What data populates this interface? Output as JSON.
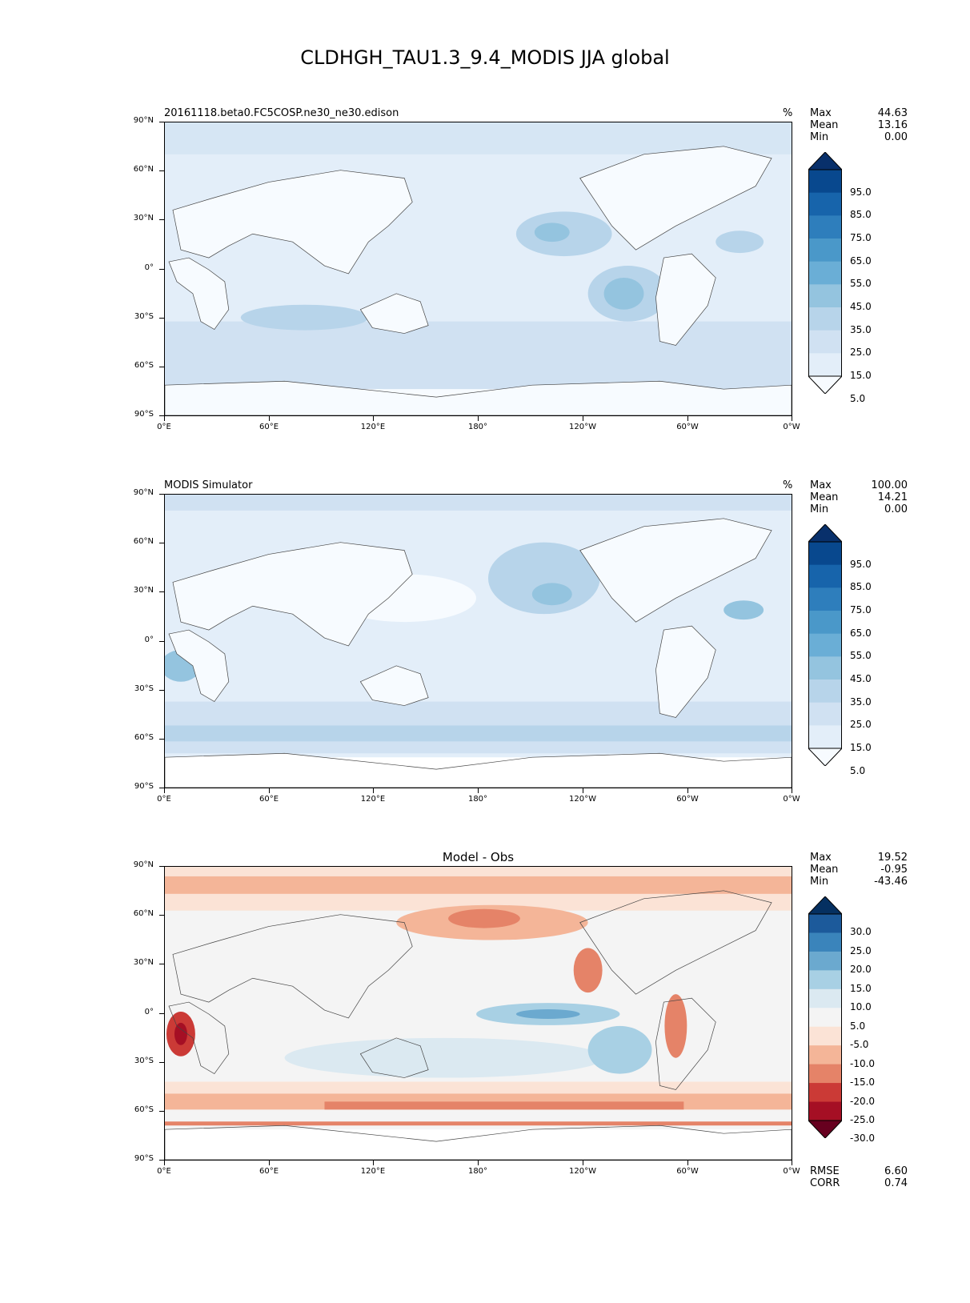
{
  "title": "CLDHGH_TAU1.3_9.4_MODIS JJA global",
  "axes": {
    "lat_labels": [
      "90°N",
      "60°N",
      "30°N",
      "0°",
      "30°S",
      "60°S",
      "90°S"
    ],
    "lon_labels": [
      "0°E",
      "60°E",
      "120°E",
      "180°",
      "120°W",
      "60°W",
      "0°W"
    ]
  },
  "panels": [
    {
      "title": "20161118.beta0.FC5COSP.ne30_ne30.edison",
      "units": "%",
      "stats": {
        "max_label": "Max",
        "max": "44.63",
        "mean_label": "Mean",
        "mean": "13.16",
        "min_label": "Min",
        "min": "0.00"
      },
      "colorbar_labels": [
        "95.0",
        "85.0",
        "75.0",
        "65.0",
        "55.0",
        "45.0",
        "35.0",
        "25.0",
        "15.0",
        "5.0"
      ]
    },
    {
      "title": "MODIS Simulator",
      "units": "%",
      "stats": {
        "max_label": "Max",
        "max": "100.00",
        "mean_label": "Mean",
        "mean": "14.21",
        "min_label": "Min",
        "min": "0.00"
      },
      "colorbar_labels": [
        "95.0",
        "85.0",
        "75.0",
        "65.0",
        "55.0",
        "45.0",
        "35.0",
        "25.0",
        "15.0",
        "5.0"
      ]
    },
    {
      "title": "Model - Obs",
      "units": "",
      "stats": {
        "max_label": "Max",
        "max": "19.52",
        "mean_label": "Mean",
        "mean": "-0.95",
        "min_label": "Min",
        "min": "-43.46"
      },
      "colorbar_labels": [
        "30.0",
        "25.0",
        "20.0",
        "15.0",
        "10.0",
        "5.0",
        "-5.0",
        "-10.0",
        "-15.0",
        "-20.0",
        "-25.0",
        "-30.0"
      ],
      "extra_stats": {
        "rmse_label": "RMSE",
        "rmse": "6.60",
        "corr_label": "CORR",
        "corr": "0.74"
      }
    }
  ],
  "colors": {
    "blues": [
      "#f7fbff",
      "#e3eef9",
      "#d0e1f2",
      "#b7d4ea",
      "#94c4df",
      "#6aaed6",
      "#4a98c9",
      "#2e7ebc",
      "#1764ab",
      "#08488e",
      "#08306b"
    ],
    "rdbu": [
      "#67001f",
      "#a50f24",
      "#cb3a36",
      "#e58368",
      "#f4b598",
      "#fbe3d6",
      "#f4f4f4",
      "#dbe9f1",
      "#a8d0e4",
      "#6ba9cf",
      "#3a84bb",
      "#1c5a9b",
      "#053061"
    ]
  },
  "chart_data": [
    {
      "type": "heatmap",
      "title": "20161118.beta0.FC5COSP.ne30_ne30.edison",
      "units": "%",
      "max": 44.63,
      "mean": 13.16,
      "min": 0.0,
      "levels": [
        5,
        15,
        25,
        35,
        45,
        55,
        65,
        75,
        85,
        95
      ],
      "x_ticks": [
        "0°E",
        "60°E",
        "120°E",
        "180°",
        "120°W",
        "60°W",
        "0°W"
      ],
      "y_ticks": [
        "90°N",
        "60°N",
        "30°N",
        "0°",
        "30°S",
        "60°S",
        "90°S"
      ]
    },
    {
      "type": "heatmap",
      "title": "MODIS Simulator",
      "units": "%",
      "max": 100.0,
      "mean": 14.21,
      "min": 0.0,
      "levels": [
        5,
        15,
        25,
        35,
        45,
        55,
        65,
        75,
        85,
        95
      ],
      "x_ticks": [
        "0°E",
        "60°E",
        "120°E",
        "180°",
        "120°W",
        "60°W",
        "0°W"
      ],
      "y_ticks": [
        "90°N",
        "60°N",
        "30°N",
        "0°",
        "30°S",
        "60°S",
        "90°S"
      ]
    },
    {
      "type": "heatmap",
      "title": "Model - Obs",
      "max": 19.52,
      "mean": -0.95,
      "min": -43.46,
      "rmse": 6.6,
      "corr": 0.74,
      "levels": [
        -30,
        -25,
        -20,
        -15,
        -10,
        -5,
        5,
        10,
        15,
        20,
        25,
        30
      ],
      "x_ticks": [
        "0°E",
        "60°E",
        "120°E",
        "180°",
        "120°W",
        "60°W",
        "0°W"
      ],
      "y_ticks": [
        "90°N",
        "60°N",
        "30°N",
        "0°",
        "30°S",
        "60°S",
        "90°S"
      ]
    }
  ]
}
